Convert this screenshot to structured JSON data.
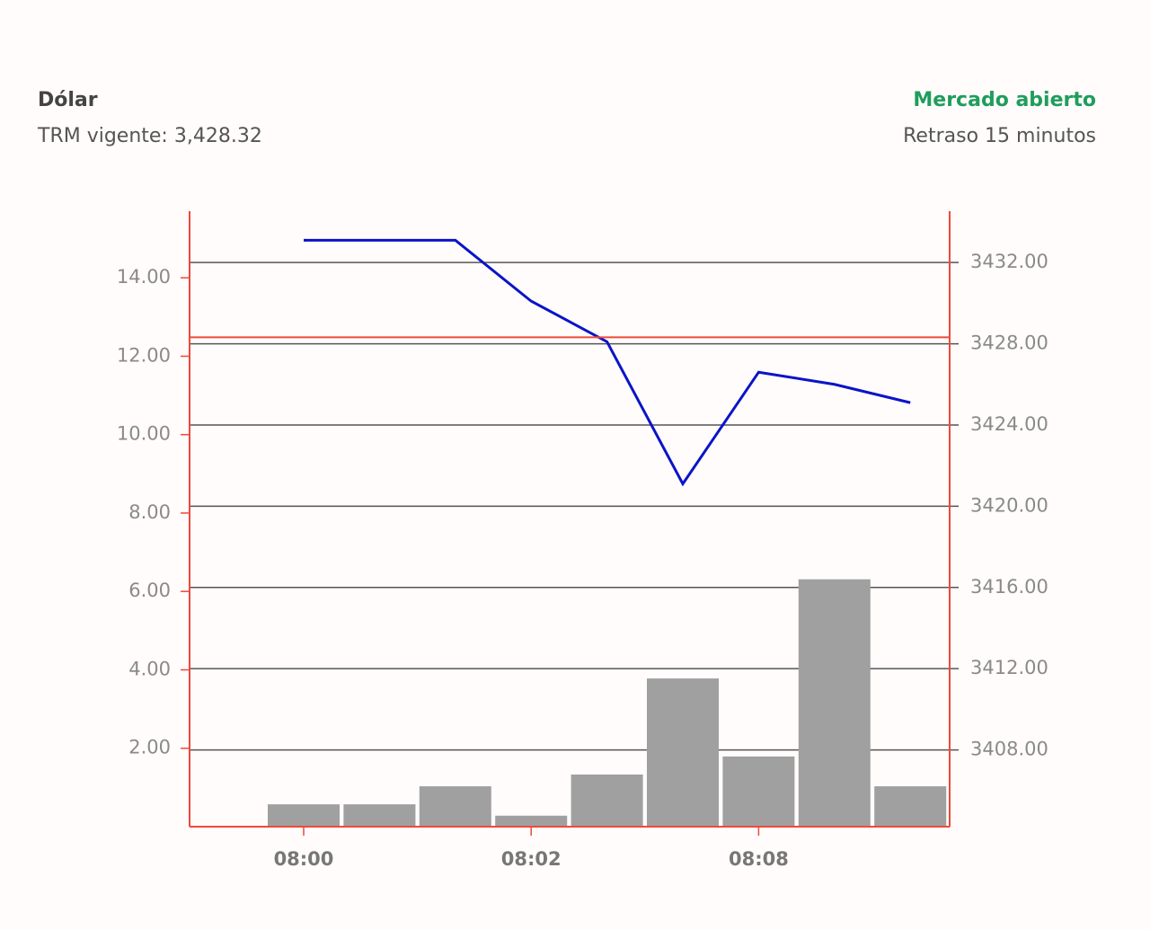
{
  "header": {
    "title": "Dólar",
    "subtitle": "TRM vigente: 3,428.32",
    "status": "Mercado abierto",
    "delay": "Retraso 15 minutos"
  },
  "chart_data": {
    "type": "combo",
    "categories": [
      "08:00",
      null,
      null,
      "08:02",
      null,
      null,
      "08:08",
      null,
      null
    ],
    "series": [
      {
        "type": "bar",
        "color": "#a0a0a0",
        "values": [
          0.57,
          0.57,
          1.03,
          0.28,
          1.33,
          3.78,
          1.79,
          6.31,
          1.03
        ]
      },
      {
        "type": "line",
        "axis": "y2",
        "color": "#0a14c8",
        "values": [
          3433.1,
          3433.1,
          3433.1,
          3430.1,
          3428.1,
          3421.1,
          3426.6,
          3426.0,
          3425.1
        ]
      }
    ],
    "reference_line": {
      "axis": "y2",
      "value": 3428.32,
      "color": "#ee4a3a"
    },
    "ylim": [
      0,
      15.7
    ],
    "yticks": [
      {
        "value": 2,
        "label": "2.00"
      },
      {
        "value": 4,
        "label": "4.00"
      },
      {
        "value": 6,
        "label": "6.00"
      },
      {
        "value": 8,
        "label": "8.00"
      },
      {
        "value": 10,
        "label": "10.00"
      },
      {
        "value": 12,
        "label": "12.00"
      },
      {
        "value": 14,
        "label": "14.00"
      }
    ],
    "y2lim": [
      3404.22,
      3434.53
    ],
    "y2ticks": [
      {
        "value": 3408,
        "label": "3408.00"
      },
      {
        "value": 3412,
        "label": "3412.00"
      },
      {
        "value": 3416,
        "label": "3416.00"
      },
      {
        "value": 3420,
        "label": "3420.00"
      },
      {
        "value": 3424,
        "label": "3424.00"
      },
      {
        "value": 3428,
        "label": "3428.00"
      },
      {
        "value": 3432,
        "label": "3432.00"
      }
    ],
    "grid": true,
    "axis_color": "#ee4a3a"
  }
}
